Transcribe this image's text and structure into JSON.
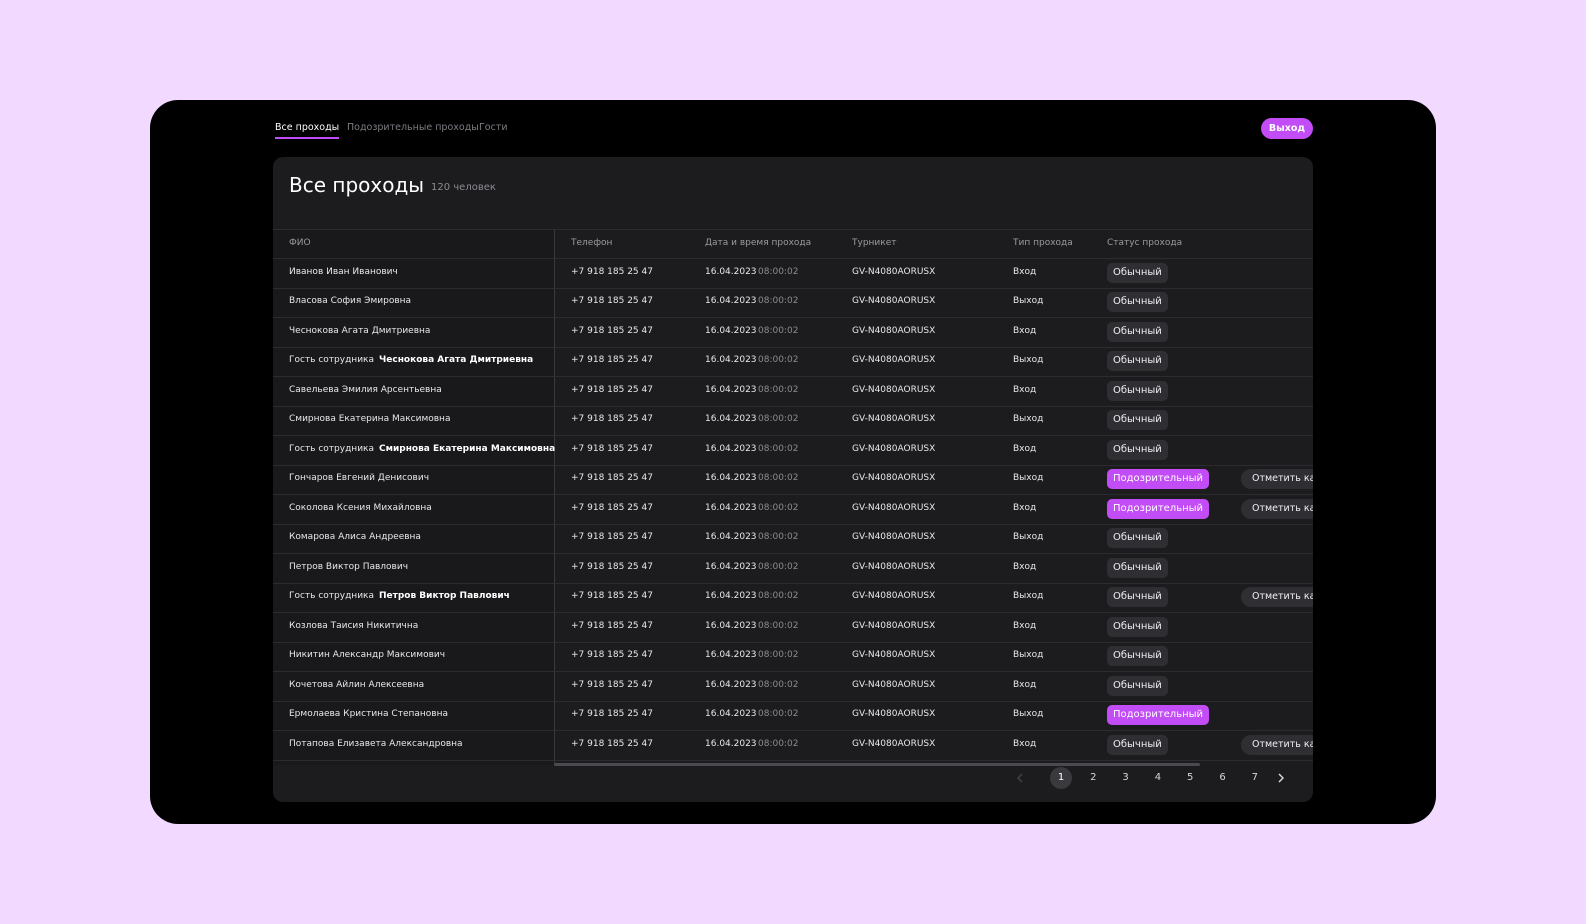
{
  "nav": {
    "tabs": [
      "Все проходы",
      "Подозрительные проходы",
      "Гости"
    ],
    "logout": "Выход"
  },
  "header": {
    "title": "Все проходы",
    "count": "120 человек"
  },
  "table": {
    "columns": [
      "ФИО",
      "Телефон",
      "Дата и время прохода",
      "Турникет",
      "Тип прохода",
      "Статус прохода"
    ],
    "rows": [
      {
        "name": "Иванов Иван Иванович",
        "phone": "+7 918 185 25 47",
        "date": "16.04.2023",
        "time": "08:00:02",
        "turnstile": "GV-N4080AORUSX",
        "type": "Вход",
        "status": "Обычный"
      },
      {
        "name": "Власова София Эмировна",
        "phone": "+7 918 185 25 47",
        "date": "16.04.2023",
        "time": "08:00:02",
        "turnstile": "GV-N4080AORUSX",
        "type": "Выход",
        "status": "Обычный"
      },
      {
        "name": "Чеснокова Агата Дмитриевна",
        "phone": "+7 918 185 25 47",
        "date": "16.04.2023",
        "time": "08:00:02",
        "turnstile": "GV-N4080AORUSX",
        "type": "Вход",
        "status": "Обычный"
      },
      {
        "prefix": "Гость сотрудника",
        "name": "Чеснокова Агата Дмитриевна",
        "phone": "+7 918 185 25 47",
        "date": "16.04.2023",
        "time": "08:00:02",
        "turnstile": "GV-N4080AORUSX",
        "type": "Выход",
        "status": "Обычный"
      },
      {
        "name": "Савельева Эмилия Арсентьевна",
        "phone": "+7 918 185 25 47",
        "date": "16.04.2023",
        "time": "08:00:02",
        "turnstile": "GV-N4080AORUSX",
        "type": "Вход",
        "status": "Обычный"
      },
      {
        "name": "Смирнова Екатерина Максимовна",
        "phone": "+7 918 185 25 47",
        "date": "16.04.2023",
        "time": "08:00:02",
        "turnstile": "GV-N4080AORUSX",
        "type": "Выход",
        "status": "Обычный"
      },
      {
        "prefix": "Гость сотрудника",
        "name": "Смирнова Екатерина Максимовна",
        "phone": "+7 918 185 25 47",
        "date": "16.04.2023",
        "time": "08:00:02",
        "turnstile": "GV-N4080AORUSX",
        "type": "Вход",
        "status": "Обычный"
      },
      {
        "name": "Гончаров Евгений Денисович",
        "phone": "+7 918 185 25 47",
        "date": "16.04.2023",
        "time": "08:00:02",
        "turnstile": "GV-N4080AORUSX",
        "type": "Выход",
        "status": "Подозрительный",
        "action": "Отметить как"
      },
      {
        "name": "Соколова Ксения Михайловна",
        "phone": "+7 918 185 25 47",
        "date": "16.04.2023",
        "time": "08:00:02",
        "turnstile": "GV-N4080AORUSX",
        "type": "Вход",
        "status": "Подозрительный",
        "action": "Отметить как"
      },
      {
        "name": "Комарова Алиса Андреевна",
        "phone": "+7 918 185 25 47",
        "date": "16.04.2023",
        "time": "08:00:02",
        "turnstile": "GV-N4080AORUSX",
        "type": "Выход",
        "status": "Обычный"
      },
      {
        "name": "Петров Виктор Павлович",
        "phone": "+7 918 185 25 47",
        "date": "16.04.2023",
        "time": "08:00:02",
        "turnstile": "GV-N4080AORUSX",
        "type": "Вход",
        "status": "Обычный"
      },
      {
        "prefix": "Гость сотрудника",
        "name": "Петров Виктор Павлович",
        "phone": "+7 918 185 25 47",
        "date": "16.04.2023",
        "time": "08:00:02",
        "turnstile": "GV-N4080AORUSX",
        "type": "Выход",
        "status": "Обычный",
        "action": "Отметить как"
      },
      {
        "name": "Козлова Таисия Никитична",
        "phone": "+7 918 185 25 47",
        "date": "16.04.2023",
        "time": "08:00:02",
        "turnstile": "GV-N4080AORUSX",
        "type": "Вход",
        "status": "Обычный"
      },
      {
        "name": "Никитин Александр Максимович",
        "phone": "+7 918 185 25 47",
        "date": "16.04.2023",
        "time": "08:00:02",
        "turnstile": "GV-N4080AORUSX",
        "type": "Выход",
        "status": "Обычный"
      },
      {
        "name": "Кочетова Айлин Алексеевна",
        "phone": "+7 918 185 25 47",
        "date": "16.04.2023",
        "time": "08:00:02",
        "turnstile": "GV-N4080AORUSX",
        "type": "Вход",
        "status": "Обычный"
      },
      {
        "name": "Ермолаева Кристина Степановна",
        "phone": "+7 918 185 25 47",
        "date": "16.04.2023",
        "time": "08:00:02",
        "turnstile": "GV-N4080AORUSX",
        "type": "Выход",
        "status": "Подозрительный"
      },
      {
        "name": "Потапова Елизавета Александровна",
        "phone": "+7 918 185 25 47",
        "date": "16.04.2023",
        "time": "08:00:02",
        "turnstile": "GV-N4080AORUSX",
        "type": "Вход",
        "status": "Обычный",
        "action": "Отметить как"
      }
    ]
  },
  "pagination": {
    "pages": [
      "1",
      "2",
      "3",
      "4",
      "5",
      "6",
      "7"
    ],
    "current": "1"
  }
}
